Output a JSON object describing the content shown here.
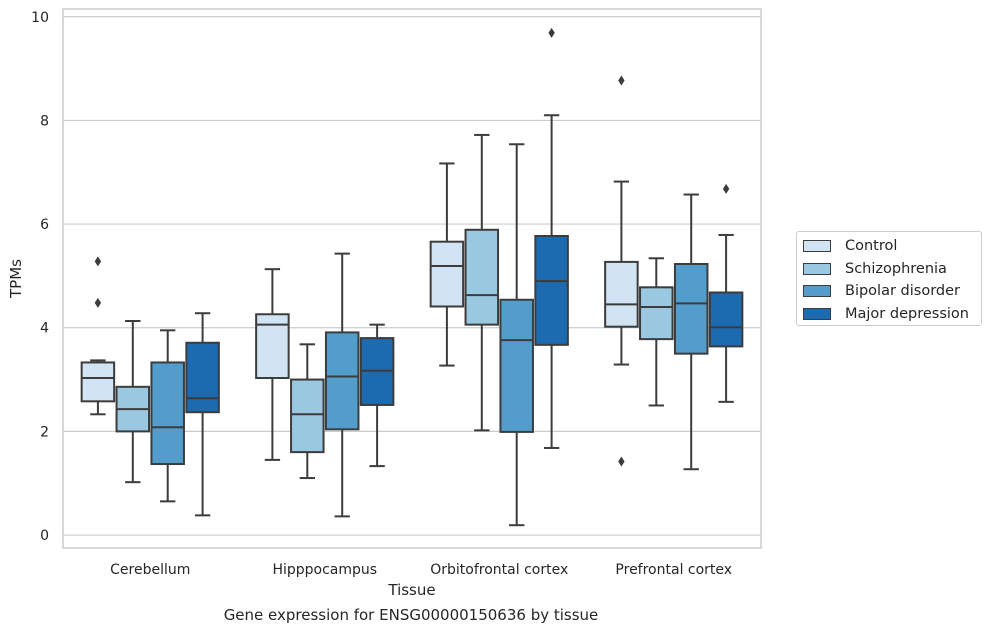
{
  "caption": "Gene expression for ENSG00000150636 by tissue",
  "chart_data": {
    "type": "box",
    "xlabel": "Tissue",
    "ylabel": "TPMs",
    "ylim": [
      -0.25,
      10.15
    ],
    "yticks": [
      0,
      2,
      4,
      6,
      8,
      10
    ],
    "grid": "horizontal",
    "legend_position": "right",
    "categories": [
      "Cerebellum",
      "Hipppocampus",
      "Orbitofrontal cortex",
      "Prefrontal cortex"
    ],
    "series": [
      {
        "name": "Control",
        "color": "#d2e3f3",
        "boxes": [
          {
            "whisker_low": 2.33,
            "q1": 2.58,
            "median": 3.03,
            "q3": 3.33,
            "whisker_high": 3.37,
            "outliers": [
              4.48,
              5.28
            ]
          },
          {
            "whisker_low": 1.45,
            "q1": 3.03,
            "median": 4.06,
            "q3": 4.26,
            "whisker_high": 5.13,
            "outliers": []
          },
          {
            "whisker_low": 3.27,
            "q1": 4.41,
            "median": 5.19,
            "q3": 5.66,
            "whisker_high": 7.17,
            "outliers": []
          },
          {
            "whisker_low": 3.29,
            "q1": 4.02,
            "median": 4.45,
            "q3": 5.27,
            "whisker_high": 6.82,
            "outliers": [
              1.42,
              8.77
            ]
          }
        ]
      },
      {
        "name": "Schizophrenia",
        "color": "#9ac8e0",
        "boxes": [
          {
            "whisker_low": 1.02,
            "q1": 2.0,
            "median": 2.43,
            "q3": 2.86,
            "whisker_high": 4.13,
            "outliers": []
          },
          {
            "whisker_low": 1.1,
            "q1": 1.6,
            "median": 2.33,
            "q3": 3.0,
            "whisker_high": 3.68,
            "outliers": []
          },
          {
            "whisker_low": 2.02,
            "q1": 4.06,
            "median": 4.63,
            "q3": 5.89,
            "whisker_high": 7.72,
            "outliers": []
          },
          {
            "whisker_low": 2.5,
            "q1": 3.78,
            "median": 4.4,
            "q3": 4.78,
            "whisker_high": 5.34,
            "outliers": []
          }
        ]
      },
      {
        "name": "Bipolar disorder",
        "color": "#529dcc",
        "boxes": [
          {
            "whisker_low": 0.65,
            "q1": 1.37,
            "median": 2.08,
            "q3": 3.33,
            "whisker_high": 3.95,
            "outliers": []
          },
          {
            "whisker_low": 0.36,
            "q1": 2.04,
            "median": 3.06,
            "q3": 3.91,
            "whisker_high": 5.43,
            "outliers": []
          },
          {
            "whisker_low": 0.19,
            "q1": 1.99,
            "median": 3.76,
            "q3": 4.54,
            "whisker_high": 7.54,
            "outliers": []
          },
          {
            "whisker_low": 1.27,
            "q1": 3.5,
            "median": 4.47,
            "q3": 5.23,
            "whisker_high": 6.57,
            "outliers": []
          }
        ]
      },
      {
        "name": "Major depression",
        "color": "#1c6aaf",
        "boxes": [
          {
            "whisker_low": 0.38,
            "q1": 2.37,
            "median": 2.64,
            "q3": 3.71,
            "whisker_high": 4.28,
            "outliers": []
          },
          {
            "whisker_low": 1.33,
            "q1": 2.51,
            "median": 3.17,
            "q3": 3.8,
            "whisker_high": 4.06,
            "outliers": []
          },
          {
            "whisker_low": 1.68,
            "q1": 3.67,
            "median": 4.9,
            "q3": 5.77,
            "whisker_high": 8.1,
            "outliers": [
              9.69
            ]
          },
          {
            "whisker_low": 2.57,
            "q1": 3.64,
            "median": 4.01,
            "q3": 4.68,
            "whisker_high": 5.79,
            "outliers": [
              6.68
            ]
          }
        ]
      }
    ]
  }
}
